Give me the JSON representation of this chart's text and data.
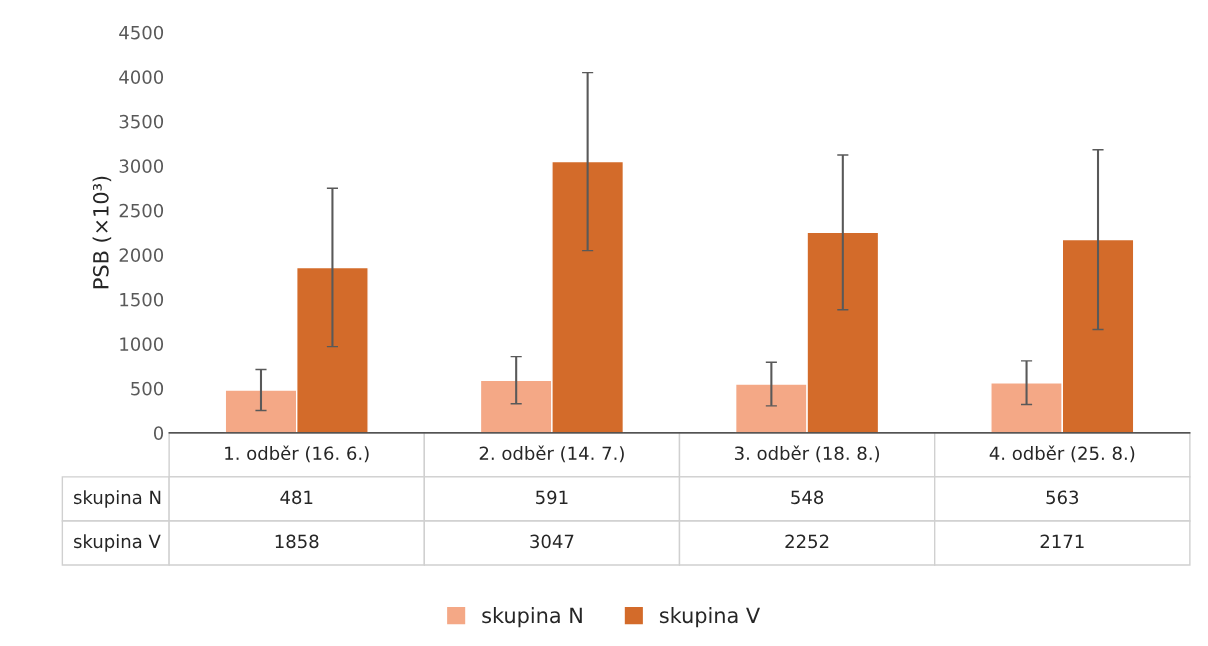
{
  "chart_data": {
    "type": "bar",
    "ylabel": "PSB (×10³)",
    "categories": [
      "1. odběr (16. 6.)",
      "2. odběr (14. 7.)",
      "3. odběr (18. 8.)",
      "4. odběr (25. 8.)"
    ],
    "series": [
      {
        "name": "skupina N",
        "color": "#f4a886",
        "values": [
          481,
          591,
          548,
          563
        ],
        "errors": [
          230,
          265,
          245,
          245
        ]
      },
      {
        "name": "skupina V",
        "color": "#d36b2a",
        "values": [
          1858,
          3047,
          2252,
          2171
        ],
        "errors": [
          890,
          1000,
          870,
          1010
        ]
      }
    ],
    "ylim": [
      0,
      4500
    ],
    "yticks": [
      0,
      500,
      1000,
      1500,
      2000,
      2500,
      3000,
      3500,
      4000,
      4500
    ],
    "grid": false,
    "legend": "bottom",
    "data_labels": true
  }
}
